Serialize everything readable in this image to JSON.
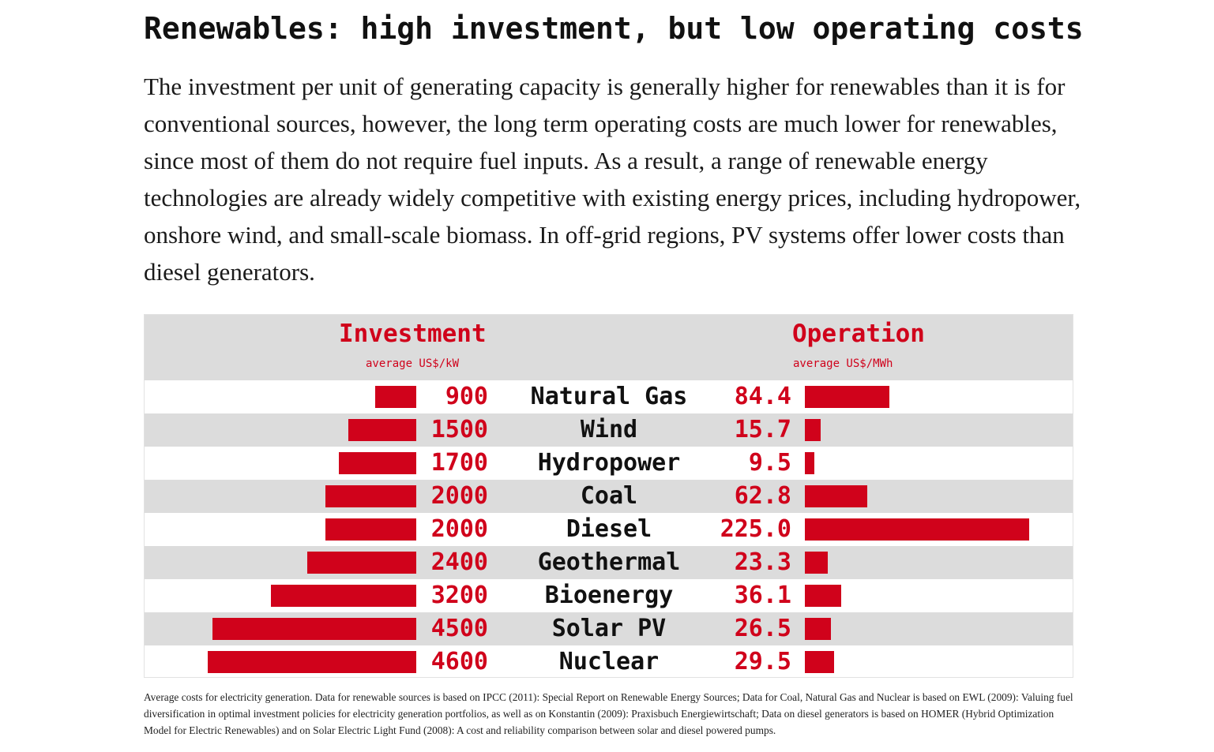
{
  "title": "Renewables: high investment, but low operating costs",
  "intro": "The investment per unit of generating capacity is generally higher for renewables than it is for conventional sources, however, the long term operating costs are much lower for renewables, since most of them do not require fuel inputs. As a result, a range of renewable energy technologies are already widely competitive with existing energy prices, including hydropower, onshore wind, and small-scale biomass. In off-grid regions, PV systems offer lower costs than diesel generators.",
  "footnote": "Average costs for electricity generation. Data for renewable sources is based on IPCC (2011): Special Report on Renewable Energy Sources; Data for Coal, Natural Gas and Nuclear is based on EWL (2009): Valuing fuel diversification in optimal investment policies for electricity generation portfolios, as well as on Konstantin (2009): Praxisbuch Energiewirtschaft; Data on diesel generators is based on HOMER (Hybrid Optimization Model for Electric Renewables) and on Solar Electric Light Fund (2008): A cost and reliability comparison between solar and diesel powered pumps.",
  "colors": {
    "accent": "#d0021b",
    "row_alt": "#dcdcdc"
  },
  "chart_data": {
    "type": "bar",
    "categories": [
      "Natural Gas",
      "Wind",
      "Hydropower",
      "Coal",
      "Diesel",
      "Geothermal",
      "Bioenergy",
      "Solar PV",
      "Nuclear"
    ],
    "series": [
      {
        "name": "Investment",
        "unit": "average US$/kW",
        "values": [
          900,
          1500,
          1700,
          2000,
          2000,
          2400,
          3200,
          4500,
          4600
        ],
        "labels": [
          "900",
          "1500",
          "1700",
          "2000",
          "2000",
          "2400",
          "3200",
          "4500",
          "4600"
        ]
      },
      {
        "name": "Operation",
        "unit": "average US$/MWh",
        "values": [
          84.4,
          15.7,
          9.5,
          62.8,
          225.0,
          23.3,
          36.1,
          26.5,
          29.5
        ],
        "labels": [
          "84.4",
          "15.7",
          "9.5",
          "62.8",
          "225.0",
          "23.3",
          "36.1",
          "26.5",
          "29.5"
        ]
      }
    ]
  }
}
